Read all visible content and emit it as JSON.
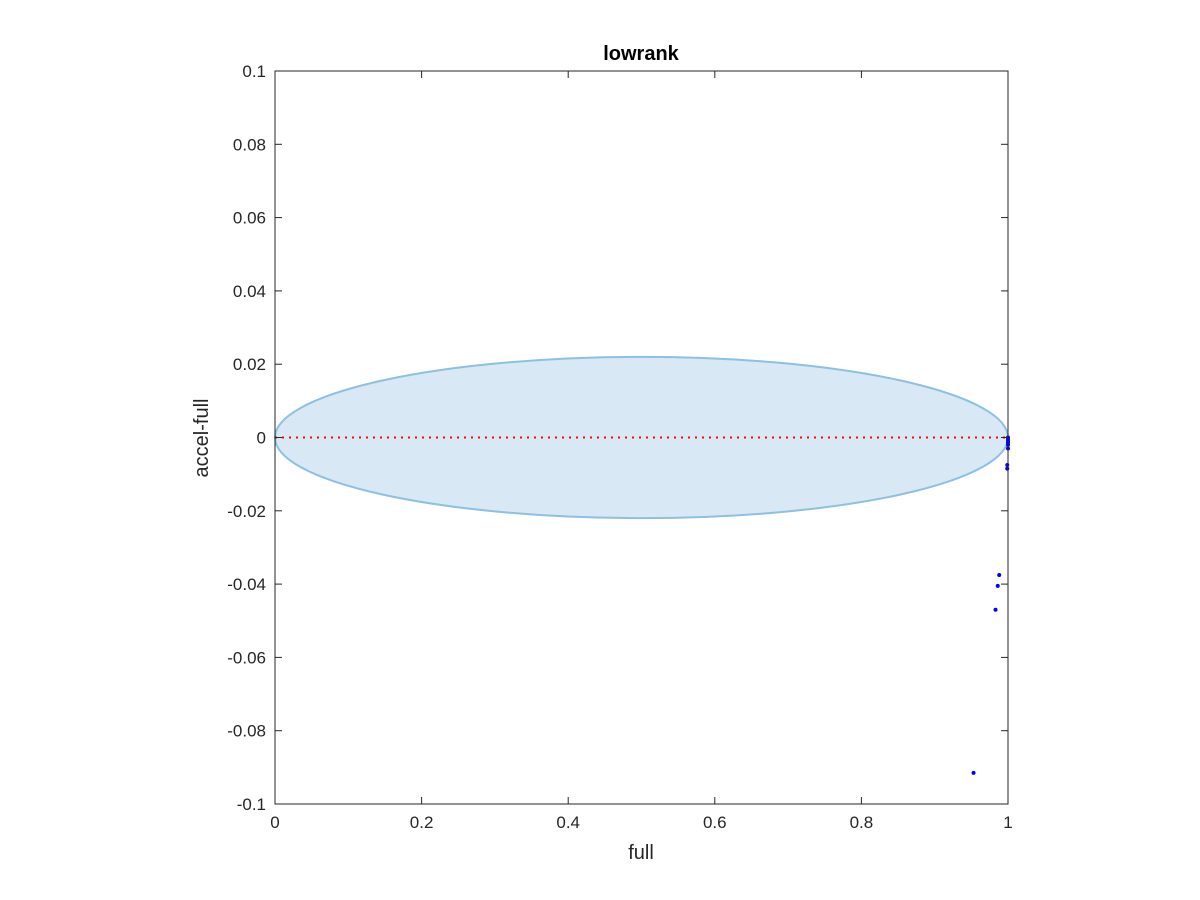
{
  "chart_data": {
    "type": "scatter",
    "title": "lowrank",
    "xlabel": "full",
    "ylabel": "accel-full",
    "xlim": [
      0,
      1
    ],
    "ylim": [
      -0.1,
      0.1
    ],
    "x_ticks": [
      0,
      0.2,
      0.4,
      0.6,
      0.8,
      1
    ],
    "x_tick_labels": [
      "0",
      "0.2",
      "0.4",
      "0.6",
      "0.8",
      "1"
    ],
    "y_ticks": [
      -0.1,
      -0.08,
      -0.06,
      -0.04,
      -0.02,
      0,
      0.02,
      0.04,
      0.06,
      0.08,
      0.1
    ],
    "y_tick_labels": [
      "-0.1",
      "-0.08",
      "-0.06",
      "-0.04",
      "-0.02",
      "0",
      "0.02",
      "0.04",
      "0.06",
      "0.08",
      "0.1"
    ],
    "grid": false,
    "box": true,
    "colors": {
      "points": "#0000ff",
      "reference_line": "#ff0000",
      "ellipse_fill": "#d8e8f4",
      "ellipse_edge": "#8ec0e0",
      "axes": "#262626"
    },
    "reference_line": {
      "y": 0,
      "x_range": [
        0,
        1
      ],
      "style": "dotted"
    },
    "ellipse": {
      "cx": 0.5,
      "cy": 0,
      "rx": 0.5,
      "ry": 0.022
    },
    "points": [
      {
        "x": 1.0,
        "y": 0.0
      },
      {
        "x": 1.0,
        "y": -0.0005
      },
      {
        "x": 1.0,
        "y": -0.001
      },
      {
        "x": 1.0,
        "y": -0.0015
      },
      {
        "x": 1.0,
        "y": -0.002
      },
      {
        "x": 1.0,
        "y": -0.003
      },
      {
        "x": 0.999,
        "y": -0.0075
      },
      {
        "x": 0.999,
        "y": -0.0085
      },
      {
        "x": 0.988,
        "y": -0.0375
      },
      {
        "x": 0.986,
        "y": -0.0405
      },
      {
        "x": 0.983,
        "y": -0.047
      },
      {
        "x": 0.953,
        "y": -0.0915
      }
    ]
  }
}
